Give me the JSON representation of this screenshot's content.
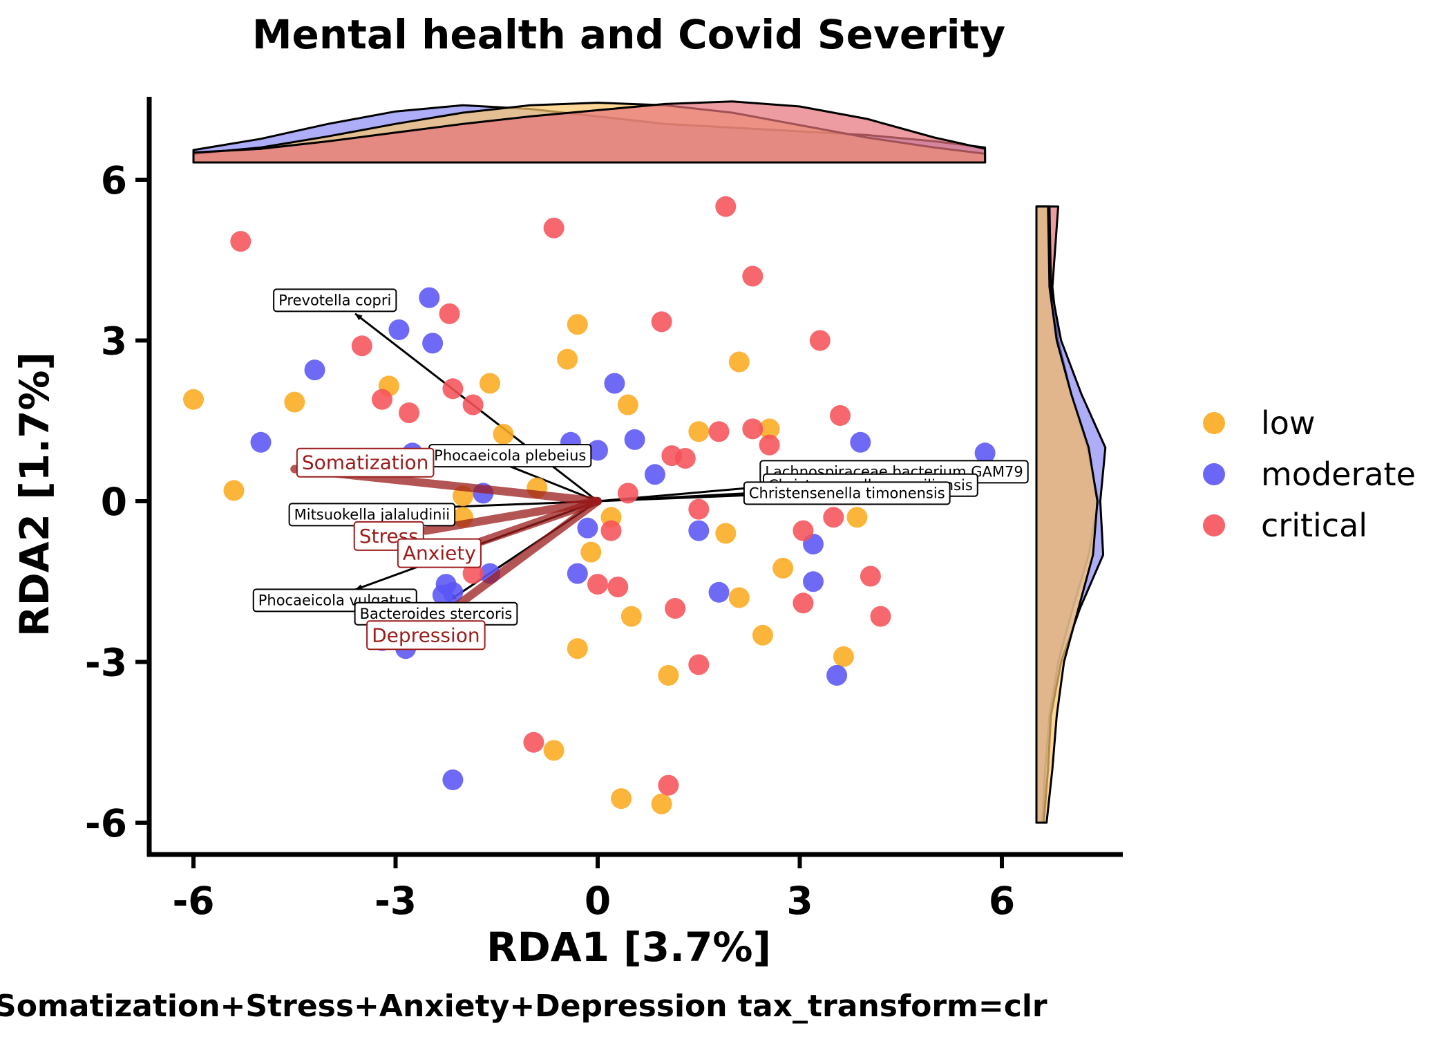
{
  "chart_data": {
    "type": "scatter",
    "title": "Mental health and Covid Severity",
    "xlabel": "RDA1 [3.7%]",
    "ylabel": "RDA2 [1.7%]",
    "caption": "Somatization+Stress+Anxiety+Depression tax_transform=clr",
    "xlim": [
      -6.6,
      7.6
    ],
    "ylim": [
      -6.6,
      7.5
    ],
    "xticks": [
      "-6",
      "-3",
      "0",
      "3",
      "6"
    ],
    "yticks": [
      "6",
      "3",
      "0",
      "-3",
      "-6"
    ],
    "grid": false,
    "legend_position": "right",
    "colors": {
      "low": "#fbab20",
      "moderate": "#5b55f5",
      "critical": "#f5525a",
      "constraint": "#9b1c1c"
    },
    "series": [
      {
        "name": "low",
        "points": [
          [
            -6.0,
            1.9
          ],
          [
            -5.4,
            0.2
          ],
          [
            -4.5,
            1.85
          ],
          [
            -3.1,
            2.15
          ],
          [
            -1.6,
            2.2
          ],
          [
            -1.4,
            1.25
          ],
          [
            -2.0,
            0.1
          ],
          [
            -2.0,
            -0.3
          ],
          [
            -0.9,
            0.25
          ],
          [
            -0.45,
            2.65
          ],
          [
            -0.3,
            3.3
          ],
          [
            0.45,
            1.8
          ],
          [
            0.2,
            -0.3
          ],
          [
            -0.1,
            -0.95
          ],
          [
            1.5,
            1.3
          ],
          [
            2.55,
            1.35
          ],
          [
            2.1,
            2.6
          ],
          [
            1.9,
            -0.6
          ],
          [
            2.75,
            -1.25
          ],
          [
            1.05,
            -3.25
          ],
          [
            -0.3,
            -2.75
          ],
          [
            0.5,
            -2.15
          ],
          [
            2.1,
            -1.8
          ],
          [
            2.45,
            -2.5
          ],
          [
            3.85,
            -0.3
          ],
          [
            3.65,
            -2.9
          ],
          [
            -0.65,
            -4.65
          ],
          [
            0.35,
            -5.55
          ],
          [
            0.95,
            -5.65
          ]
        ]
      },
      {
        "name": "moderate",
        "points": [
          [
            -5.0,
            1.1
          ],
          [
            -4.2,
            2.45
          ],
          [
            -2.5,
            3.8
          ],
          [
            -2.95,
            3.2
          ],
          [
            -2.45,
            2.95
          ],
          [
            -2.75,
            0.9
          ],
          [
            -1.7,
            0.15
          ],
          [
            -0.4,
            1.1
          ],
          [
            0.0,
            0.95
          ],
          [
            0.25,
            2.2
          ],
          [
            0.55,
            1.15
          ],
          [
            0.85,
            0.5
          ],
          [
            -0.15,
            -0.5
          ],
          [
            -0.3,
            -1.35
          ],
          [
            1.5,
            -0.55
          ],
          [
            3.2,
            -0.8
          ],
          [
            3.2,
            -1.5
          ],
          [
            1.8,
            -1.7
          ],
          [
            3.9,
            1.1
          ],
          [
            5.75,
            0.9
          ],
          [
            -1.6,
            -1.35
          ],
          [
            -2.25,
            -1.55
          ],
          [
            -2.3,
            -1.75
          ],
          [
            -2.15,
            -1.7
          ],
          [
            -3.2,
            -2.6
          ],
          [
            -2.85,
            -2.75
          ],
          [
            -2.15,
            -5.2
          ],
          [
            3.55,
            -3.25
          ]
        ]
      },
      {
        "name": "critical",
        "points": [
          [
            -5.3,
            4.85
          ],
          [
            -0.65,
            5.1
          ],
          [
            1.9,
            5.5
          ],
          [
            2.3,
            4.2
          ],
          [
            -2.2,
            3.5
          ],
          [
            0.95,
            3.35
          ],
          [
            3.3,
            3.0
          ],
          [
            -3.5,
            2.9
          ],
          [
            -3.2,
            1.9
          ],
          [
            -2.8,
            1.65
          ],
          [
            -2.15,
            2.1
          ],
          [
            -1.85,
            1.8
          ],
          [
            1.8,
            1.3
          ],
          [
            2.3,
            1.35
          ],
          [
            2.55,
            1.05
          ],
          [
            3.6,
            1.6
          ],
          [
            1.1,
            0.85
          ],
          [
            1.3,
            0.8
          ],
          [
            0.45,
            0.15
          ],
          [
            1.5,
            -0.15
          ],
          [
            0.2,
            -0.55
          ],
          [
            3.05,
            -0.55
          ],
          [
            3.5,
            -0.3
          ],
          [
            4.05,
            -1.4
          ],
          [
            -1.85,
            -1.35
          ],
          [
            0.0,
            -1.55
          ],
          [
            0.3,
            -1.6
          ],
          [
            1.15,
            -2.0
          ],
          [
            3.05,
            -1.9
          ],
          [
            4.2,
            -2.15
          ],
          [
            1.5,
            -3.05
          ],
          [
            -0.95,
            -4.5
          ],
          [
            1.05,
            -5.3
          ]
        ]
      }
    ],
    "species_loadings": [
      {
        "label": "Prevotella copri",
        "end": [
          -3.6,
          3.5
        ],
        "label_at": [
          -3.9,
          3.75
        ]
      },
      {
        "label": "Phocaeicola plebeius",
        "end": [
          -1.8,
          0.9
        ],
        "label_at": [
          -1.3,
          0.85
        ]
      },
      {
        "label": "Mitsuokella jalaludinii",
        "end": [
          -3.1,
          -0.15
        ],
        "label_at": [
          -3.35,
          -0.25
        ]
      },
      {
        "label": "Phocaeicola vulgatus",
        "end": [
          -3.6,
          -1.65
        ],
        "label_at": [
          -3.9,
          -1.85
        ]
      },
      {
        "label": "Bacteroides stercoris",
        "end": [
          -2.2,
          -1.85
        ],
        "label_at": [
          -2.4,
          -2.1
        ]
      },
      {
        "label": "Lachnospiraceae bacterium GAM79",
        "end": [
          5.0,
          0.55
        ],
        "label_at": [
          4.4,
          0.55
        ]
      },
      {
        "label": "Christensenella massiliensis",
        "end": [
          4.5,
          0.3
        ],
        "label_at": [
          4.05,
          0.3
        ]
      },
      {
        "label": "Christensenella timonensis",
        "end": [
          4.0,
          0.2
        ],
        "label_at": [
          3.7,
          0.15
        ]
      }
    ],
    "constraints": [
      {
        "label": "Somatization",
        "end": [
          -4.5,
          0.6
        ],
        "label_at": [
          -3.45,
          0.72
        ]
      },
      {
        "label": "Stress",
        "end": [
          -2.55,
          -0.55
        ],
        "label_at": [
          -3.1,
          -0.65
        ]
      },
      {
        "label": "Anxiety",
        "end": [
          -2.3,
          -1.0
        ],
        "label_at": [
          -2.35,
          -0.97
        ]
      },
      {
        "label": "Depression",
        "end": [
          -2.25,
          -2.1
        ],
        "label_at": [
          -2.55,
          -2.5
        ]
      }
    ],
    "marginal_x": [
      {
        "name": "moderate",
        "x": [
          -6.0,
          -5.0,
          -4.0,
          -3.0,
          -2.0,
          -1.0,
          0.0,
          1.0,
          2.0,
          3.0,
          4.0,
          5.0,
          5.75
        ],
        "density": [
          0.2,
          0.38,
          0.62,
          0.82,
          0.92,
          0.86,
          0.74,
          0.62,
          0.56,
          0.5,
          0.44,
          0.34,
          0.24
        ]
      },
      {
        "name": "low",
        "x": [
          -6.0,
          -5.0,
          -4.0,
          -3.0,
          -2.0,
          -1.0,
          0.0,
          1.0,
          2.0,
          3.0,
          4.0,
          5.0,
          5.75
        ],
        "density": [
          0.14,
          0.24,
          0.42,
          0.62,
          0.8,
          0.92,
          0.96,
          0.92,
          0.8,
          0.6,
          0.4,
          0.24,
          0.14
        ]
      },
      {
        "name": "critical",
        "x": [
          -6.0,
          -5.0,
          -4.0,
          -3.0,
          -2.0,
          -1.0,
          0.0,
          1.0,
          2.0,
          3.0,
          4.0,
          5.0,
          5.75
        ],
        "density": [
          0.16,
          0.22,
          0.34,
          0.48,
          0.62,
          0.74,
          0.84,
          0.94,
          0.98,
          0.9,
          0.7,
          0.4,
          0.22
        ]
      }
    ],
    "marginal_y": [
      {
        "name": "critical",
        "y": [
          5.5,
          4.0,
          3.0,
          2.0,
          1.0,
          0.0,
          -1.0,
          -2.0,
          -3.0,
          -4.0,
          -5.0,
          -6.0
        ],
        "density": [
          0.3,
          0.22,
          0.3,
          0.48,
          0.7,
          0.85,
          0.72,
          0.5,
          0.3,
          0.18,
          0.12,
          0.08
        ]
      },
      {
        "name": "moderate",
        "y": [
          5.5,
          4.0,
          3.0,
          2.0,
          1.0,
          0.0,
          -1.0,
          -2.0,
          -3.0,
          -4.0,
          -5.0,
          -6.0
        ],
        "density": [
          0.18,
          0.2,
          0.34,
          0.62,
          0.95,
          0.88,
          0.92,
          0.6,
          0.34,
          0.2,
          0.16,
          0.1
        ]
      },
      {
        "name": "low",
        "y": [
          5.5,
          4.0,
          3.0,
          2.0,
          1.0,
          0.0,
          -1.0,
          -2.0,
          -3.0,
          -4.0,
          -5.0,
          -6.0
        ],
        "density": [
          0.16,
          0.18,
          0.28,
          0.48,
          0.72,
          0.84,
          0.78,
          0.58,
          0.38,
          0.28,
          0.22,
          0.14
        ]
      }
    ]
  }
}
